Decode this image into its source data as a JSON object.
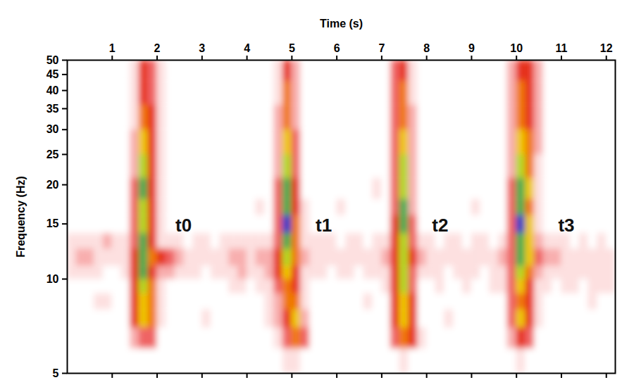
{
  "chart_data": {
    "type": "heatmap",
    "x_label": "Time (s)",
    "y_label": "Frequency (Hz)",
    "xlim": [
      0,
      12.2
    ],
    "ylim": [
      5,
      50
    ],
    "xticks": [
      1,
      2,
      3,
      4,
      5,
      6,
      7,
      8,
      9,
      10,
      11,
      12
    ],
    "yticks": [
      5,
      10,
      15,
      20,
      25,
      30,
      35,
      40,
      45,
      50
    ],
    "log": "y",
    "x_edges": [
      0,
      0.2,
      0.4,
      0.6,
      0.8,
      1.0,
      1.2,
      1.4,
      1.6,
      1.8,
      2.0,
      2.2,
      2.4,
      2.6,
      2.8,
      3.0,
      3.2,
      3.4,
      3.6,
      3.8,
      4.0,
      4.2,
      4.4,
      4.6,
      4.8,
      5.0,
      5.2,
      5.4,
      5.6,
      5.8,
      6.0,
      6.2,
      6.4,
      6.6,
      6.8,
      7.0,
      7.2,
      7.4,
      7.6,
      7.8,
      8.0,
      8.2,
      8.4,
      8.6,
      8.8,
      9.0,
      9.2,
      9.4,
      9.6,
      9.8,
      10.0,
      10.2,
      10.4,
      10.6,
      10.8,
      11.0,
      11.2,
      11.4,
      11.6,
      11.8,
      12.0,
      12.2
    ],
    "y_edges": [
      5,
      6,
      7,
      8,
      9,
      10,
      11,
      12.5,
      14,
      16,
      18,
      21,
      25,
      30,
      36,
      43,
      50
    ],
    "cells": [
      [
        0,
        0,
        0,
        0,
        0,
        1,
        1,
        1,
        0,
        0,
        0,
        0,
        0,
        0,
        0,
        0
      ],
      [
        0,
        0,
        0,
        0,
        0,
        1,
        2,
        1,
        0,
        0,
        0,
        0,
        0,
        0,
        0,
        0
      ],
      [
        0,
        0,
        0,
        0,
        0,
        1,
        2,
        1,
        0,
        0,
        0,
        0,
        0,
        0,
        0,
        0
      ],
      [
        0,
        0,
        0,
        1,
        0,
        1,
        1,
        1,
        0,
        0,
        0,
        0,
        0,
        0,
        0,
        0
      ],
      [
        0,
        0,
        0,
        1,
        0,
        0,
        1,
        2,
        0,
        0,
        0,
        0,
        0,
        0,
        0,
        0
      ],
      [
        0,
        0,
        0,
        0,
        0,
        0,
        1,
        1,
        0,
        0,
        0,
        0,
        0,
        0,
        0,
        0
      ],
      [
        0,
        0,
        0,
        0,
        0,
        1,
        1,
        1,
        0,
        0,
        0,
        0,
        0,
        0,
        0,
        0
      ],
      [
        0,
        2,
        4,
        4,
        4,
        4,
        4,
        3,
        3,
        3,
        3,
        2,
        2,
        1,
        1,
        1
      ],
      [
        0,
        3,
        6,
        6,
        7,
        8,
        8,
        8,
        7,
        7,
        8,
        7,
        6,
        5,
        4,
        4
      ],
      [
        0,
        3,
        5,
        5,
        5,
        4,
        5,
        4,
        4,
        4,
        4,
        4,
        4,
        4,
        3,
        3
      ],
      [
        0,
        0,
        1,
        1,
        1,
        2,
        4,
        1,
        1,
        1,
        1,
        1,
        1,
        1,
        1,
        1
      ],
      [
        0,
        0,
        0,
        0,
        0,
        2,
        3,
        1,
        0,
        0,
        0,
        0,
        0,
        0,
        0,
        0
      ],
      [
        0,
        0,
        0,
        0,
        0,
        1,
        2,
        1,
        0,
        0,
        0,
        0,
        0,
        0,
        0,
        0
      ],
      [
        0,
        0,
        0,
        0,
        0,
        1,
        1,
        0,
        0,
        0,
        0,
        0,
        0,
        0,
        0,
        0
      ],
      [
        0,
        0,
        0,
        0,
        0,
        1,
        1,
        1,
        0,
        0,
        0,
        0,
        0,
        0,
        0,
        0
      ],
      [
        0,
        0,
        1,
        0,
        0,
        0,
        1,
        1,
        0,
        0,
        0,
        0,
        0,
        0,
        0,
        0
      ],
      [
        0,
        0,
        0,
        0,
        0,
        1,
        1,
        0,
        0,
        0,
        0,
        0,
        0,
        0,
        0,
        0
      ],
      [
        0,
        0,
        0,
        0,
        0,
        1,
        1,
        1,
        0,
        0,
        0,
        0,
        0,
        0,
        0,
        0
      ],
      [
        0,
        0,
        0,
        0,
        1,
        1,
        2,
        1,
        0,
        0,
        0,
        0,
        0,
        0,
        0,
        0
      ],
      [
        0,
        0,
        0,
        0,
        1,
        2,
        2,
        1,
        0,
        0,
        0,
        0,
        0,
        0,
        0,
        0
      ],
      [
        0,
        0,
        0,
        0,
        0,
        1,
        1,
        1,
        0,
        0,
        0,
        0,
        0,
        0,
        0,
        0
      ],
      [
        0,
        0,
        0,
        0,
        1,
        1,
        2,
        1,
        0,
        1,
        0,
        0,
        0,
        0,
        0,
        0
      ],
      [
        0,
        0,
        1,
        1,
        1,
        2,
        2,
        1,
        0,
        0,
        0,
        0,
        0,
        0,
        0,
        0
      ],
      [
        0,
        1,
        2,
        2,
        3,
        4,
        4,
        3,
        3,
        3,
        3,
        2,
        2,
        2,
        1,
        1
      ],
      [
        1,
        3,
        4,
        5,
        5,
        6,
        7,
        8,
        9,
        8,
        8,
        7,
        6,
        5,
        5,
        4
      ],
      [
        1,
        5,
        6,
        5,
        4,
        4,
        5,
        5,
        5,
        4,
        4,
        3,
        3,
        2,
        2,
        2
      ],
      [
        0,
        3,
        2,
        1,
        1,
        1,
        2,
        1,
        1,
        1,
        0,
        0,
        0,
        0,
        0,
        0
      ],
      [
        0,
        0,
        0,
        0,
        0,
        1,
        1,
        1,
        0,
        0,
        0,
        0,
        0,
        0,
        0,
        0
      ],
      [
        0,
        0,
        0,
        0,
        0,
        1,
        1,
        1,
        0,
        0,
        0,
        0,
        0,
        0,
        0,
        0
      ],
      [
        0,
        0,
        0,
        0,
        0,
        0,
        1,
        1,
        0,
        0,
        0,
        0,
        0,
        0,
        0,
        0
      ],
      [
        0,
        0,
        0,
        0,
        0,
        1,
        1,
        0,
        0,
        1,
        0,
        0,
        0,
        0,
        0,
        0
      ],
      [
        0,
        0,
        0,
        0,
        0,
        1,
        1,
        1,
        0,
        0,
        0,
        0,
        0,
        0,
        0,
        0
      ],
      [
        0,
        0,
        0,
        0,
        0,
        0,
        1,
        1,
        0,
        0,
        0,
        0,
        0,
        0,
        0,
        0
      ],
      [
        0,
        0,
        0,
        1,
        0,
        1,
        1,
        0,
        0,
        0,
        0,
        0,
        0,
        0,
        0,
        0
      ],
      [
        0,
        0,
        0,
        0,
        0,
        1,
        1,
        1,
        0,
        0,
        1,
        0,
        0,
        0,
        0,
        0
      ],
      [
        0,
        0,
        0,
        0,
        1,
        1,
        2,
        1,
        0,
        0,
        0,
        0,
        0,
        0,
        0,
        0
      ],
      [
        0,
        3,
        4,
        4,
        4,
        4,
        4,
        4,
        4,
        3,
        3,
        3,
        3,
        3,
        3,
        3
      ],
      [
        1,
        5,
        6,
        6,
        7,
        7,
        7,
        7,
        8,
        8,
        7,
        7,
        6,
        5,
        5,
        4
      ],
      [
        0,
        4,
        4,
        4,
        3,
        3,
        4,
        3,
        3,
        2,
        2,
        2,
        2,
        2,
        1,
        1
      ],
      [
        0,
        1,
        0,
        0,
        0,
        1,
        2,
        1,
        0,
        0,
        0,
        0,
        0,
        0,
        0,
        0
      ],
      [
        0,
        0,
        0,
        0,
        0,
        1,
        1,
        1,
        0,
        0,
        0,
        0,
        0,
        0,
        0,
        0
      ],
      [
        0,
        0,
        0,
        0,
        1,
        1,
        1,
        0,
        0,
        0,
        0,
        0,
        0,
        0,
        0,
        0
      ],
      [
        0,
        0,
        1,
        0,
        0,
        0,
        1,
        1,
        0,
        0,
        0,
        0,
        0,
        0,
        0,
        0
      ],
      [
        0,
        0,
        0,
        0,
        0,
        1,
        1,
        1,
        0,
        0,
        0,
        0,
        0,
        0,
        0,
        0
      ],
      [
        0,
        0,
        0,
        0,
        1,
        1,
        1,
        0,
        0,
        0,
        0,
        0,
        0,
        0,
        0,
        0
      ],
      [
        0,
        0,
        0,
        0,
        0,
        1,
        1,
        1,
        0,
        1,
        0,
        0,
        0,
        0,
        0,
        0
      ],
      [
        0,
        0,
        0,
        0,
        0,
        0,
        1,
        1,
        0,
        0,
        0,
        0,
        0,
        0,
        0,
        0
      ],
      [
        0,
        0,
        0,
        0,
        1,
        1,
        1,
        0,
        0,
        0,
        0,
        0,
        0,
        0,
        0,
        0
      ],
      [
        0,
        0,
        0,
        0,
        1,
        1,
        2,
        1,
        0,
        0,
        0,
        0,
        0,
        0,
        0,
        0
      ],
      [
        0,
        2,
        3,
        3,
        3,
        3,
        3,
        3,
        3,
        3,
        3,
        2,
        2,
        2,
        2,
        2
      ],
      [
        1,
        4,
        6,
        5,
        6,
        7,
        8,
        8,
        9,
        8,
        8,
        7,
        6,
        5,
        5,
        4
      ],
      [
        0,
        3,
        4,
        4,
        4,
        5,
        6,
        6,
        6,
        5,
        6,
        5,
        5,
        4,
        4,
        4
      ],
      [
        0,
        0,
        1,
        1,
        1,
        2,
        3,
        2,
        1,
        1,
        1,
        1,
        2,
        2,
        2,
        2
      ],
      [
        0,
        0,
        0,
        0,
        1,
        1,
        2,
        1,
        0,
        0,
        0,
        0,
        0,
        0,
        0,
        0
      ],
      [
        0,
        0,
        0,
        0,
        0,
        1,
        2,
        1,
        0,
        0,
        0,
        0,
        0,
        0,
        0,
        0
      ],
      [
        0,
        0,
        0,
        0,
        1,
        1,
        1,
        1,
        0,
        0,
        0,
        0,
        0,
        0,
        0,
        0
      ],
      [
        0,
        0,
        0,
        0,
        1,
        1,
        1,
        0,
        0,
        0,
        0,
        0,
        0,
        0,
        0,
        0
      ],
      [
        0,
        0,
        0,
        0,
        0,
        1,
        1,
        1,
        0,
        0,
        0,
        0,
        0,
        0,
        0,
        0
      ],
      [
        0,
        0,
        0,
        1,
        1,
        1,
        1,
        0,
        0,
        0,
        0,
        0,
        0,
        0,
        0,
        0
      ],
      [
        0,
        0,
        0,
        0,
        1,
        1,
        1,
        1,
        0,
        0,
        0,
        0,
        0,
        0,
        0,
        0
      ],
      [
        0,
        0,
        0,
        0,
        1,
        1,
        1,
        0,
        0,
        0,
        0,
        0,
        0,
        0,
        0,
        0
      ]
    ],
    "annotations": [
      {
        "text": "t0",
        "x": 2.59,
        "y": 14.8
      },
      {
        "text": "t1",
        "x": 5.71,
        "y": 14.8
      },
      {
        "text": "t2",
        "x": 8.3,
        "y": 14.8
      },
      {
        "text": "t3",
        "x": 11.11,
        "y": 14.8
      }
    ]
  }
}
